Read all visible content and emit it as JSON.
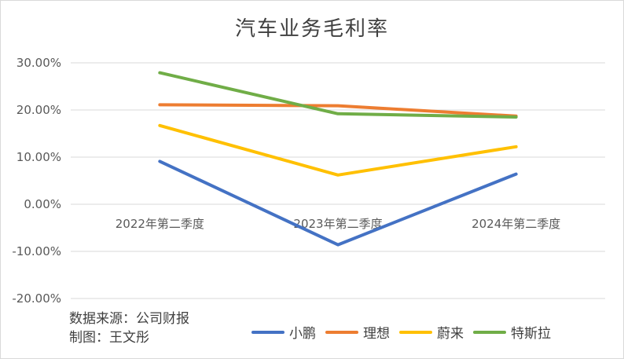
{
  "chart_data": {
    "type": "line",
    "title": "汽车业务毛利率",
    "categories": [
      "2022年第二季度",
      "2023年第二季度",
      "2024年第二季度"
    ],
    "y_ticks": [
      "30.00%",
      "20.00%",
      "10.00%",
      "0.00%",
      "-10.00%",
      "-20.00%"
    ],
    "ylim": [
      -20,
      30
    ],
    "grid": true,
    "legend_position": "bottom",
    "series": [
      {
        "name": "小鹏",
        "color": "#4472c4",
        "values": [
          9.1,
          -8.6,
          6.4
        ]
      },
      {
        "name": "理想",
        "color": "#ed7d31",
        "values": [
          21.1,
          20.9,
          18.7
        ]
      },
      {
        "name": "蔚来",
        "color": "#ffc000",
        "values": [
          16.7,
          6.2,
          12.2
        ]
      },
      {
        "name": "特斯拉",
        "color": "#70ad47",
        "values": [
          27.9,
          19.2,
          18.5
        ]
      }
    ]
  },
  "source_note": {
    "line1": "数据来源：公司财报",
    "line2": "制图：王文彤"
  }
}
